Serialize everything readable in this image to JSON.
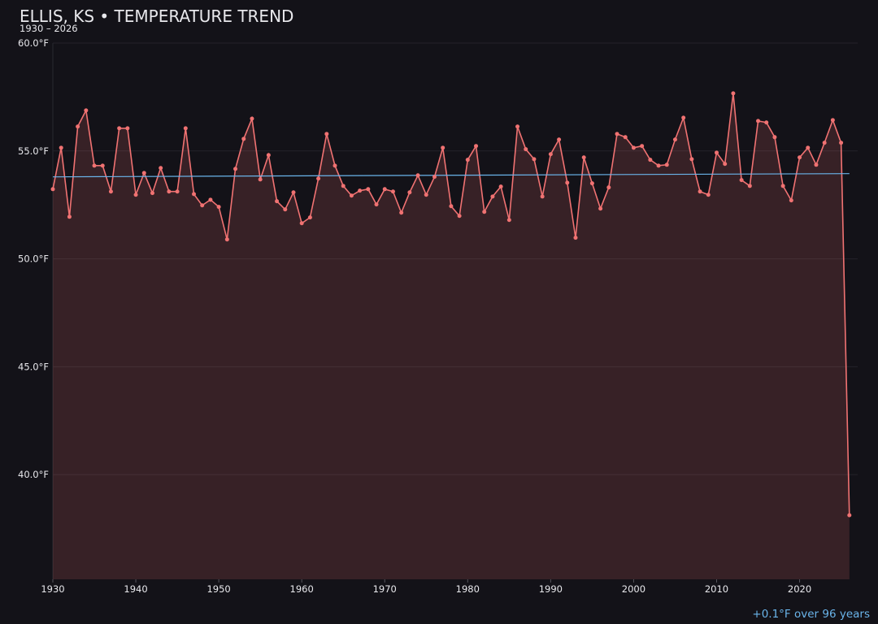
{
  "chart_data": {
    "type": "line",
    "title": "ELLIS, KS • TEMPERATURE TREND",
    "subtitle": "1930 – 2026",
    "annotation": "+0.1°F over 96 years",
    "x": [
      1930,
      1931,
      1932,
      1933,
      1934,
      1935,
      1936,
      1937,
      1938,
      1939,
      1940,
      1941,
      1942,
      1943,
      1944,
      1945,
      1946,
      1947,
      1948,
      1949,
      1950,
      1951,
      1952,
      1953,
      1954,
      1955,
      1956,
      1957,
      1958,
      1959,
      1960,
      1961,
      1962,
      1963,
      1964,
      1965,
      1966,
      1967,
      1968,
      1969,
      1970,
      1971,
      1972,
      1973,
      1974,
      1975,
      1976,
      1977,
      1978,
      1979,
      1980,
      1981,
      1982,
      1983,
      1984,
      1985,
      1986,
      1987,
      1988,
      1989,
      1990,
      1991,
      1992,
      1993,
      1994,
      1995,
      1996,
      1997,
      1998,
      1999,
      2000,
      2001,
      2002,
      2003,
      2004,
      2005,
      2006,
      2007,
      2008,
      2009,
      2010,
      2011,
      2012,
      2013,
      2014,
      2015,
      2016,
      2017,
      2018,
      2019,
      2020,
      2021,
      2022,
      2023,
      2024,
      2025,
      2026
    ],
    "series": [
      {
        "color": "#f07272",
        "values": [
          53.23,
          55.15,
          51.95,
          56.13,
          56.88,
          54.32,
          54.32,
          53.12,
          56.05,
          56.05,
          52.97,
          53.98,
          53.05,
          54.21,
          53.12,
          53.12,
          56.05,
          53.0,
          52.48,
          52.74,
          52.41,
          50.9,
          54.17,
          55.56,
          56.5,
          53.68,
          54.81,
          52.67,
          52.29,
          53.08,
          51.65,
          51.92,
          53.72,
          55.79,
          54.32,
          53.38,
          52.93,
          53.16,
          53.23,
          52.52,
          53.23,
          53.12,
          52.14,
          53.08,
          53.87,
          52.97,
          53.8,
          55.15,
          52.44,
          51.99,
          54.59,
          55.23,
          52.18,
          52.89,
          53.35,
          51.8,
          56.13,
          55.08,
          54.62,
          52.89,
          54.85,
          55.53,
          53.53,
          50.98,
          54.7,
          53.5,
          52.33,
          53.31,
          55.79,
          55.64,
          55.15,
          55.23,
          54.59,
          54.32,
          54.36,
          55.53,
          56.54,
          54.62,
          53.12,
          52.97,
          54.92,
          54.4,
          57.67,
          53.65,
          53.38,
          56.39,
          56.32,
          55.64,
          53.38,
          52.71,
          54.7,
          55.15,
          54.36,
          55.38,
          56.43,
          55.38,
          38.12
        ]
      }
    ],
    "trend": {
      "color": "#6ab4ea",
      "x": [
        1930,
        2026
      ],
      "values": [
        53.8,
        53.95
      ]
    },
    "xlim": [
      1930,
      2027
    ],
    "ylim": [
      35.15,
      60
    ],
    "xticks": [
      1930,
      1940,
      1950,
      1960,
      1970,
      1980,
      1990,
      2000,
      2010,
      2020
    ],
    "yticks": [
      {
        "value": 40,
        "label": "40.0°F"
      },
      {
        "value": 45,
        "label": "45.0°F"
      },
      {
        "value": 50,
        "label": "50.0°F"
      },
      {
        "value": 55,
        "label": "55.0°F"
      },
      {
        "value": 60,
        "label": "60.0°F"
      }
    ],
    "grid": true
  }
}
